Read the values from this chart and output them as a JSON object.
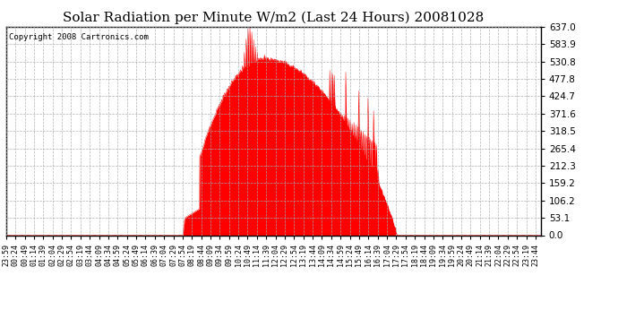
{
  "title": "Solar Radiation per Minute W/m2 (Last 24 Hours) 20081028",
  "copyright": "Copyright 2008 Cartronics.com",
  "yticks": [
    0.0,
    53.1,
    106.2,
    159.2,
    212.3,
    265.4,
    318.5,
    371.6,
    424.7,
    477.8,
    530.8,
    583.9,
    637.0
  ],
  "ymax": 637.0,
  "ymin": 0.0,
  "fill_color": "#FF0000",
  "line_color": "#FF0000",
  "grid_color": "#AAAAAA",
  "bg_color": "#FFFFFF",
  "title_fontsize": 11,
  "copyright_fontsize": 6.5,
  "dashed_line_y": 0.0,
  "x_tick_interval": 25
}
